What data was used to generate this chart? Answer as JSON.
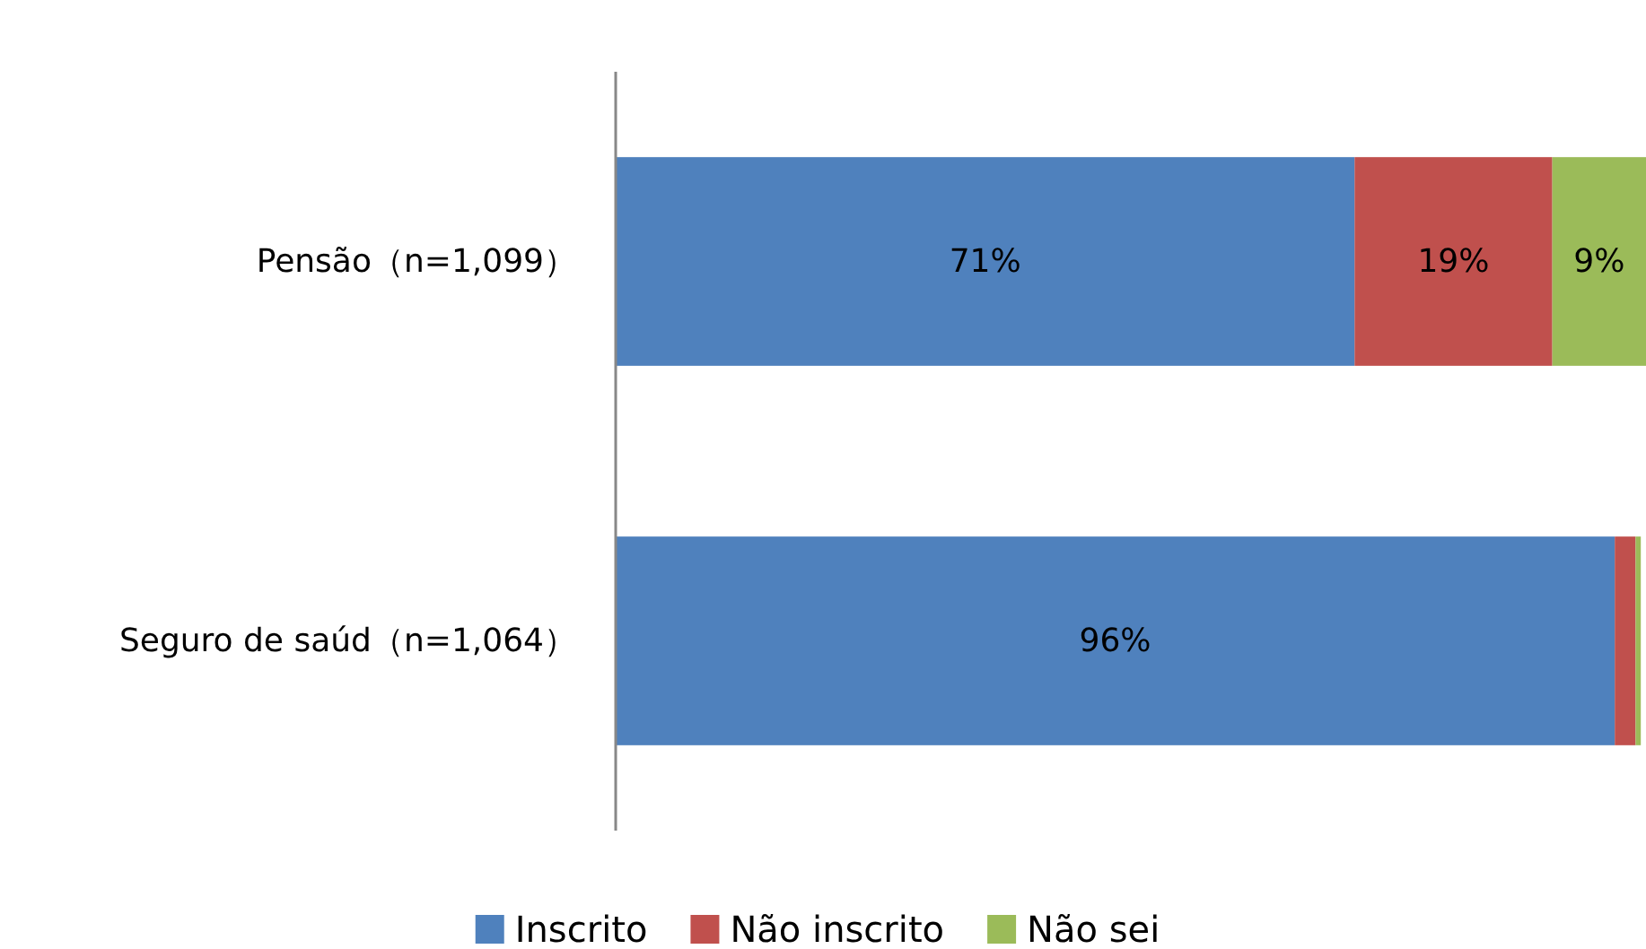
{
  "chart_data": {
    "type": "bar",
    "orientation": "horizontal",
    "stacked": true,
    "tick_labels": "y",
    "legend": "bottom",
    "categories": [
      "Pensão（n=1,099）",
      "Seguro de saúd（n=1,064）"
    ],
    "series": [
      {
        "name": "Inscrito",
        "color": "#4f81bd",
        "values": [
          71,
          96
        ],
        "value_labels": [
          "71%",
          "96%"
        ]
      },
      {
        "name": "Não inscrito",
        "color": "#c0504d",
        "values": [
          19,
          2
        ],
        "value_labels": [
          "19%",
          null
        ]
      },
      {
        "name": "Não sei",
        "color": "#9bbb59",
        "values": [
          9,
          0.5
        ],
        "value_labels": [
          "9%",
          null
        ]
      }
    ]
  }
}
